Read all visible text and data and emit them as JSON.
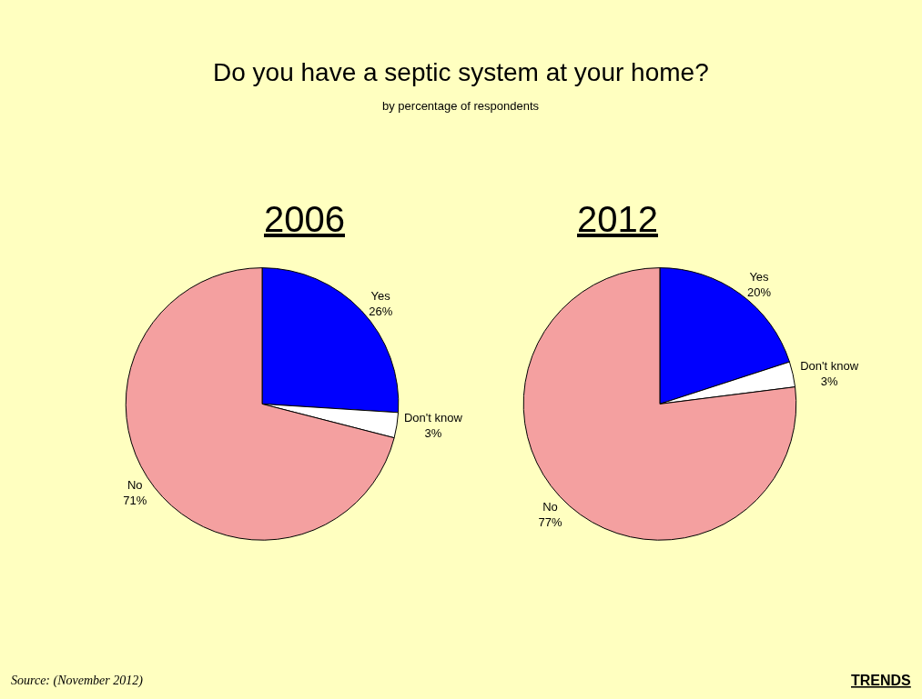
{
  "chart_data": [
    {
      "type": "pie",
      "title": "2006",
      "categories": [
        "Yes",
        "Don't know",
        "No"
      ],
      "values": [
        26,
        3,
        71
      ],
      "value_labels": [
        "26%",
        "3%",
        "71%"
      ],
      "colors": [
        "#0000ff",
        "#ffffff",
        "#f4a0a0"
      ],
      "data_labels": true,
      "legend": false,
      "annotations": [
        "Do you have a septic system at your home?",
        "by percentage of respondents"
      ]
    },
    {
      "type": "pie",
      "title": "2012",
      "categories": [
        "Yes",
        "Don't know",
        "No"
      ],
      "values": [
        20,
        3,
        77
      ],
      "value_labels": [
        "20%",
        "3%",
        "77%"
      ],
      "colors": [
        "#0000ff",
        "#ffffff",
        "#f4a0a0"
      ],
      "data_labels": true,
      "legend": false,
      "annotations": [
        "Source: (November 2012)",
        "TRENDS"
      ]
    }
  ]
}
